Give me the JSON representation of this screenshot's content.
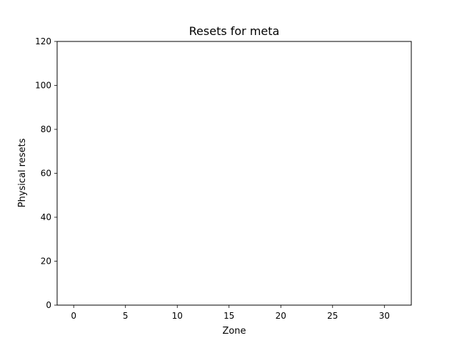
{
  "chart_data": {
    "type": "bar",
    "title": "Resets for meta",
    "xlabel": "Zone",
    "ylabel": "Physical resets",
    "xlim": [
      -1.6,
      32.6
    ],
    "ylim": [
      0,
      120
    ],
    "xticks": [
      0,
      5,
      10,
      15,
      20,
      25,
      30
    ],
    "yticks": [
      0,
      20,
      40,
      60,
      80,
      100,
      120
    ],
    "x": [],
    "values": [],
    "grid": false,
    "legend": "none",
    "colors": {
      "axis": "#000000",
      "background": "#ffffff",
      "bar": "#1f77b4"
    }
  }
}
